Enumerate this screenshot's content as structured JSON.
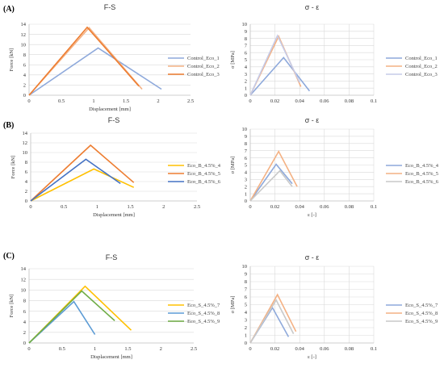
{
  "colors": {
    "grid": "#d9d9d9",
    "axis": "#bfbfbf"
  },
  "chart_data": [
    {
      "id": "A-FS",
      "panel_label": "(A)",
      "type": "line",
      "title": "F-S",
      "xlabel": "Displacement [mm]",
      "ylabel": "Force [kN]",
      "xlim": [
        0,
        2.5
      ],
      "ylim": [
        0,
        14
      ],
      "x_ticks": [
        "0",
        "0.5",
        "1",
        "1.5",
        "2",
        "2.5"
      ],
      "y_ticks": [
        "0",
        "2",
        "4",
        "6",
        "8",
        "10",
        "12",
        "14"
      ],
      "x_grid": false,
      "y_grid": true,
      "legend_position": "right",
      "series": [
        {
          "name": "Control_Eco_1",
          "color": "#8ea9db",
          "points": [
            [
              0,
              0
            ],
            [
              1.07,
              9.3
            ],
            [
              2.05,
              1.2
            ]
          ]
        },
        {
          "name": "Control_Eco_2",
          "color": "#f4b183",
          "points": [
            [
              0,
              0
            ],
            [
              0.93,
              13.3
            ],
            [
              1.75,
              1.2
            ]
          ]
        },
        {
          "name": "Control_Eco_3",
          "color": "#ed7d31",
          "points": [
            [
              0,
              0
            ],
            [
              0.9,
              13.4
            ],
            [
              1.7,
              1.8
            ]
          ]
        }
      ]
    },
    {
      "id": "A-SE",
      "panel_label": "",
      "type": "line",
      "title": "σ - ε",
      "xlabel": "",
      "ylabel": "σ [MPa]",
      "xlim": [
        0,
        0.1
      ],
      "ylim": [
        0,
        10
      ],
      "x_ticks": [
        "0",
        "0.02",
        "0.04",
        "0.06",
        "0.08",
        "0.1"
      ],
      "y_ticks": [
        "0",
        "1",
        "2",
        "3",
        "4",
        "5",
        "6",
        "7",
        "8",
        "9",
        "10"
      ],
      "x_grid": true,
      "y_grid": true,
      "legend_position": "right",
      "series": [
        {
          "name": "Control_Eco_1",
          "color": "#8ea9db",
          "points": [
            [
              0,
              0
            ],
            [
              0.027,
              5.3
            ],
            [
              0.048,
              0.6
            ]
          ]
        },
        {
          "name": "Control_Eco_2",
          "color": "#f4b183",
          "points": [
            [
              0,
              0
            ],
            [
              0.023,
              8.3
            ],
            [
              0.041,
              1.2
            ]
          ]
        },
        {
          "name": "Control_Eco_3",
          "color": "#c5cbe8",
          "points": [
            [
              0,
              0
            ],
            [
              0.022,
              8.4
            ],
            [
              0.04,
              1.8
            ]
          ]
        }
      ]
    },
    {
      "id": "B-FS",
      "panel_label": "(B)",
      "type": "line",
      "title": "F-S",
      "xlabel": "Displacement [mm]",
      "ylabel": "Force [kN]",
      "xlim": [
        0,
        2.5
      ],
      "ylim": [
        0,
        14
      ],
      "x_ticks": [
        "0",
        "0.5",
        "1",
        "1.5",
        "2",
        "2.5"
      ],
      "y_ticks": [
        "0",
        "2",
        "4",
        "6",
        "8",
        "10",
        "12",
        "14"
      ],
      "x_grid": false,
      "y_grid": true,
      "legend_position": "right",
      "series": [
        {
          "name": "Eco_B_4.5%_4",
          "color": "#ffc000",
          "points": [
            [
              0,
              0
            ],
            [
              0.95,
              6.6
            ],
            [
              1.55,
              2.8
            ]
          ]
        },
        {
          "name": "Eco_B_4.5%_5",
          "color": "#ed7d31",
          "points": [
            [
              0,
              0
            ],
            [
              0.9,
              11.5
            ],
            [
              1.55,
              3.8
            ]
          ]
        },
        {
          "name": "Eco_B_4.5%_6",
          "color": "#4472c4",
          "points": [
            [
              0,
              0
            ],
            [
              0.83,
              8.6
            ],
            [
              1.35,
              3.6
            ]
          ]
        }
      ]
    },
    {
      "id": "B-SE",
      "panel_label": "",
      "type": "line",
      "title": "σ - ε",
      "xlabel": "ε [-]",
      "ylabel": "σ [MPa]",
      "xlim": [
        0,
        0.1
      ],
      "ylim": [
        0,
        10
      ],
      "x_ticks": [
        "0",
        "0.02",
        "0.04",
        "0.06",
        "0.08",
        "0.1"
      ],
      "y_ticks": [
        "0",
        "1",
        "2",
        "3",
        "4",
        "5",
        "6",
        "7",
        "8",
        "9",
        "10"
      ],
      "x_grid": true,
      "y_grid": true,
      "legend_position": "right",
      "series": [
        {
          "name": "Eco_B_4.5%_4",
          "color": "#8ea9db",
          "points": [
            [
              0,
              0
            ],
            [
              0.021,
              5.1
            ],
            [
              0.034,
              2.4
            ]
          ]
        },
        {
          "name": "Eco_B_4.5%_5",
          "color": "#f4b183",
          "points": [
            [
              0,
              0
            ],
            [
              0.023,
              6.9
            ],
            [
              0.038,
              2.0
            ]
          ]
        },
        {
          "name": "Eco_B_4.5%_6",
          "color": "#c9c9c9",
          "points": [
            [
              0,
              0
            ],
            [
              0.024,
              4.2
            ],
            [
              0.034,
              2.0
            ]
          ]
        }
      ]
    },
    {
      "id": "C-FS",
      "panel_label": "(C)",
      "type": "line",
      "title": "F-S",
      "xlabel": "Displacement [mm]",
      "ylabel": "Force [kN]",
      "xlim": [
        0,
        2.5
      ],
      "ylim": [
        0,
        14
      ],
      "x_ticks": [
        "0",
        "0.5",
        "1",
        "1.5",
        "2",
        "2.5"
      ],
      "y_ticks": [
        "0",
        "2",
        "4",
        "6",
        "8",
        "10",
        "12",
        "14"
      ],
      "x_grid": false,
      "y_grid": true,
      "legend_position": "right",
      "series": [
        {
          "name": "Eco_S_4.5%_7",
          "color": "#ffc000",
          "points": [
            [
              0,
              0
            ],
            [
              0.85,
              10.7
            ],
            [
              1.55,
              2.4
            ]
          ]
        },
        {
          "name": "Eco_S_4.5%_8",
          "color": "#5b9bd5",
          "points": [
            [
              0,
              0
            ],
            [
              0.68,
              7.8
            ],
            [
              1.0,
              1.6
            ]
          ]
        },
        {
          "name": "Eco_S_4.5%_9",
          "color": "#70ad47",
          "points": [
            [
              0,
              0
            ],
            [
              0.8,
              9.8
            ],
            [
              1.3,
              4.2
            ]
          ]
        }
      ]
    },
    {
      "id": "C-SE",
      "panel_label": "",
      "type": "line",
      "title": "σ - ε",
      "xlabel": "ε [-]",
      "ylabel": "σ [MPa]",
      "xlim": [
        0,
        0.1
      ],
      "ylim": [
        0,
        10
      ],
      "x_ticks": [
        "0",
        "0.02",
        "0.04",
        "0.06",
        "0.08",
        "0.1"
      ],
      "y_ticks": [
        "0",
        "1",
        "2",
        "3",
        "4",
        "5",
        "6",
        "7",
        "8",
        "9",
        "10"
      ],
      "x_grid": true,
      "y_grid": true,
      "legend_position": "right",
      "series": [
        {
          "name": "Eco_S_4.5%_7",
          "color": "#8ea9db",
          "points": [
            [
              0,
              0
            ],
            [
              0.018,
              4.6
            ],
            [
              0.031,
              0.8
            ]
          ]
        },
        {
          "name": "Eco_S_4.5%_8",
          "color": "#f4b183",
          "points": [
            [
              0,
              0
            ],
            [
              0.022,
              6.3
            ],
            [
              0.037,
              1.5
            ]
          ]
        },
        {
          "name": "Eco_S_4.5%_9",
          "color": "#c9c9c9",
          "points": [
            [
              0,
              0
            ],
            [
              0.021,
              5.6
            ],
            [
              0.035,
              1.2
            ]
          ]
        }
      ]
    }
  ]
}
